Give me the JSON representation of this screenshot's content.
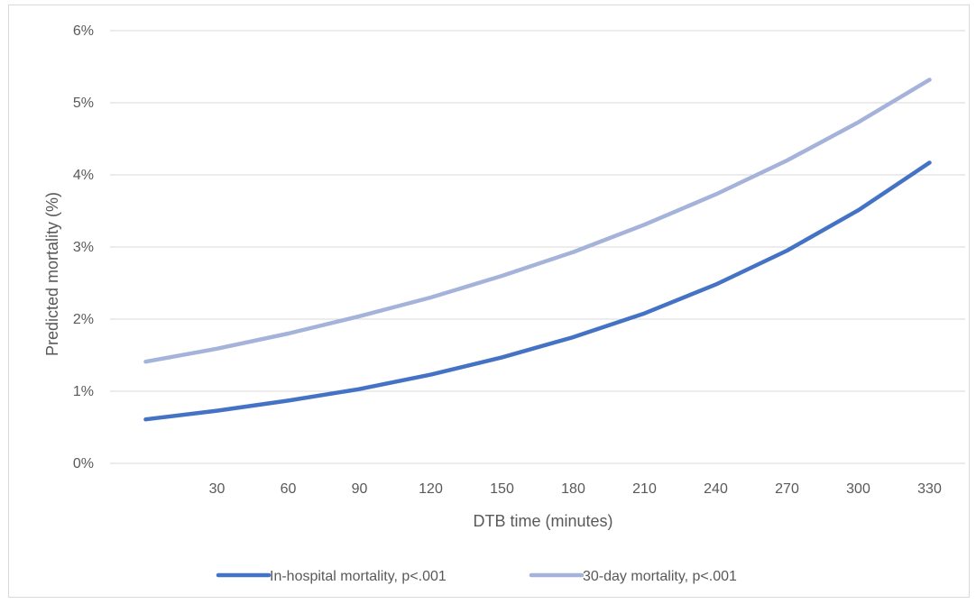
{
  "chart_data": {
    "type": "line",
    "title": "",
    "xlabel": "DTB time (minutes)",
    "ylabel": "Predicted mortality (%)",
    "x": [
      0,
      30,
      60,
      90,
      120,
      150,
      180,
      210,
      240,
      270,
      300,
      330
    ],
    "x_tick_labels": [
      "30",
      "60",
      "90",
      "120",
      "150",
      "180",
      "210",
      "240",
      "270",
      "300",
      "330"
    ],
    "x_tick_values": [
      30,
      60,
      90,
      120,
      150,
      180,
      210,
      240,
      270,
      300,
      330
    ],
    "y_tick_labels": [
      "0%",
      "1%",
      "2%",
      "3%",
      "4%",
      "5%",
      "6%"
    ],
    "y_tick_values": [
      0,
      1,
      2,
      3,
      4,
      5,
      6
    ],
    "ylim": [
      0,
      6
    ],
    "grid": true,
    "legend_position": "bottom",
    "series": [
      {
        "name": "In-hospital mortality, p<.001",
        "color": "#4472c4",
        "values": [
          0.61,
          0.73,
          0.87,
          1.03,
          1.23,
          1.47,
          1.75,
          2.08,
          2.48,
          2.95,
          3.51,
          4.17
        ]
      },
      {
        "name": "30-day mortality, p<.001",
        "color": "#a5b3db",
        "values": [
          1.41,
          1.59,
          1.8,
          2.04,
          2.3,
          2.6,
          2.93,
          3.31,
          3.73,
          4.2,
          4.73,
          5.32
        ]
      }
    ]
  }
}
